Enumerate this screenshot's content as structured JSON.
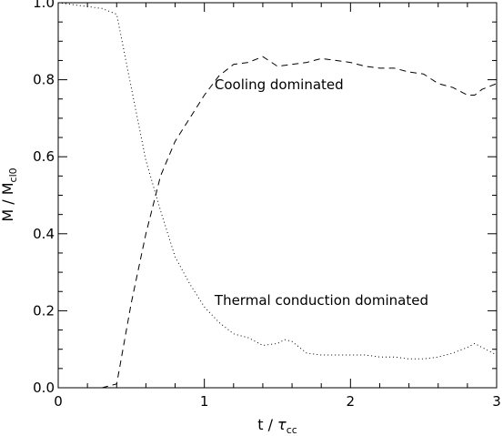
{
  "chart_data": {
    "type": "line",
    "title": "",
    "xlim": [
      0,
      3
    ],
    "ylim": [
      0,
      1
    ],
    "grid": false,
    "xlabel": {
      "main": "t",
      "sep": " / ",
      "sym": "τ",
      "sub": "cc"
    },
    "ylabel": {
      "main": "M",
      "sep": " / ",
      "sym": "M",
      "sub": "cl0"
    },
    "xticks": [
      {
        "value": 0,
        "label": "0"
      },
      {
        "value": 1,
        "label": "1"
      },
      {
        "value": 2,
        "label": "2"
      },
      {
        "value": 3,
        "label": "3"
      }
    ],
    "yticks": [
      {
        "value": 0.0,
        "label": "0.0"
      },
      {
        "value": 0.2,
        "label": "0.2"
      },
      {
        "value": 0.4,
        "label": "0.4"
      },
      {
        "value": 0.6,
        "label": "0.6"
      },
      {
        "value": 0.8,
        "label": "0.8"
      },
      {
        "value": 1.0,
        "label": "1.0"
      }
    ],
    "series": [
      {
        "style": "dashed",
        "x": [
          0,
          0.1,
          0.2,
          0.3,
          0.4,
          0.5,
          0.6,
          0.7,
          0.8,
          0.9,
          1.0,
          1.1,
          1.2,
          1.3,
          1.4,
          1.5,
          1.6,
          1.7,
          1.8,
          1.9,
          2.0,
          2.1,
          2.2,
          2.3,
          2.4,
          2.5,
          2.6,
          2.7,
          2.8,
          2.85,
          2.9,
          3.0
        ],
        "y": [
          0,
          0,
          0,
          0,
          0.01,
          0.22,
          0.4,
          0.55,
          0.64,
          0.7,
          0.76,
          0.81,
          0.84,
          0.845,
          0.86,
          0.835,
          0.84,
          0.845,
          0.855,
          0.85,
          0.845,
          0.835,
          0.83,
          0.83,
          0.82,
          0.815,
          0.79,
          0.78,
          0.76,
          0.76,
          0.775,
          0.79
        ]
      },
      {
        "style": "dotted",
        "x": [
          0,
          0.1,
          0.2,
          0.3,
          0.4,
          0.5,
          0.6,
          0.7,
          0.8,
          0.9,
          1.0,
          1.1,
          1.2,
          1.3,
          1.4,
          1.5,
          1.55,
          1.6,
          1.7,
          1.8,
          1.9,
          2.0,
          2.1,
          2.2,
          2.3,
          2.4,
          2.5,
          2.6,
          2.7,
          2.8,
          2.85,
          2.9,
          3.0
        ],
        "y": [
          1.0,
          0.995,
          0.99,
          0.985,
          0.97,
          0.78,
          0.59,
          0.46,
          0.34,
          0.27,
          0.21,
          0.17,
          0.14,
          0.13,
          0.11,
          0.115,
          0.125,
          0.12,
          0.09,
          0.085,
          0.085,
          0.085,
          0.085,
          0.08,
          0.08,
          0.075,
          0.075,
          0.08,
          0.09,
          0.105,
          0.115,
          0.105,
          0.085
        ]
      }
    ],
    "annotations": [
      {
        "text": "Cooling dominated",
        "x": 1.07,
        "y": 0.775
      },
      {
        "text": "Thermal conduction dominated",
        "x": 1.07,
        "y": 0.215
      }
    ]
  }
}
